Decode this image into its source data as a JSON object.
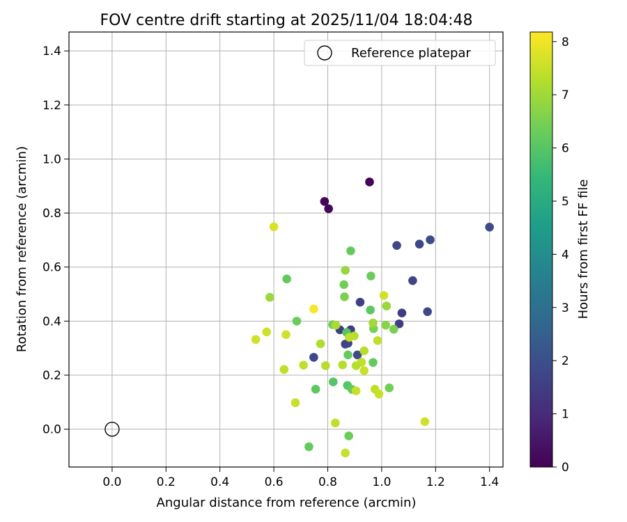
{
  "chart_data": {
    "type": "scatter",
    "title": "FOV centre drift starting at 2025/11/04 18:04:48",
    "xlabel": "Angular distance from reference (arcmin)",
    "ylabel": "Rotation from reference (arcmin)",
    "xlim": [
      -0.16,
      1.45
    ],
    "ylim": [
      -0.14,
      1.47
    ],
    "xticks": [
      0.0,
      0.2,
      0.4,
      0.6,
      0.8,
      1.0,
      1.2,
      1.4
    ],
    "yticks": [
      0.0,
      0.2,
      0.4,
      0.6,
      0.8,
      1.0,
      1.2,
      1.4
    ],
    "grid": true,
    "legend": {
      "position": "top-right",
      "entries": [
        "Reference platepar"
      ]
    },
    "reference_point": {
      "x": 0.0,
      "y": 0.0
    },
    "colorbar": {
      "label": "Hours from first FF file",
      "min": 0,
      "max": 8.18,
      "ticks": [
        0,
        1,
        2,
        3,
        4,
        5,
        6,
        7,
        8
      ],
      "colormap": [
        "#440154",
        "#482878",
        "#3e4989",
        "#31688e",
        "#26828e",
        "#1f9e89",
        "#35b779",
        "#6ece58",
        "#b5de2b",
        "#fde725"
      ]
    },
    "points": [
      {
        "x": 0.955,
        "y": 0.915,
        "c": 0.05
      },
      {
        "x": 0.788,
        "y": 0.843,
        "c": 0.1
      },
      {
        "x": 0.803,
        "y": 0.816,
        "c": 0.15
      },
      {
        "x": 1.4,
        "y": 0.748,
        "c": 1.9
      },
      {
        "x": 1.18,
        "y": 0.701,
        "c": 1.9
      },
      {
        "x": 1.14,
        "y": 0.685,
        "c": 1.8
      },
      {
        "x": 1.056,
        "y": 0.68,
        "c": 1.8
      },
      {
        "x": 1.115,
        "y": 0.55,
        "c": 1.7
      },
      {
        "x": 0.92,
        "y": 0.47,
        "c": 1.6
      },
      {
        "x": 1.17,
        "y": 0.435,
        "c": 1.8
      },
      {
        "x": 1.075,
        "y": 0.43,
        "c": 1.5
      },
      {
        "x": 1.065,
        "y": 0.39,
        "c": 1.5
      },
      {
        "x": 0.845,
        "y": 0.368,
        "c": 1.5
      },
      {
        "x": 0.885,
        "y": 0.368,
        "c": 1.5
      },
      {
        "x": 0.865,
        "y": 0.315,
        "c": 1.6
      },
      {
        "x": 0.875,
        "y": 0.318,
        "c": 1.7
      },
      {
        "x": 0.91,
        "y": 0.275,
        "c": 1.9
      },
      {
        "x": 0.748,
        "y": 0.266,
        "c": 1.8
      },
      {
        "x": 0.875,
        "y": 0.275,
        "c": 6.2
      },
      {
        "x": 0.885,
        "y": 0.66,
        "c": 6.2
      },
      {
        "x": 0.648,
        "y": 0.556,
        "c": 6.2
      },
      {
        "x": 0.96,
        "y": 0.567,
        "c": 6.3
      },
      {
        "x": 0.86,
        "y": 0.535,
        "c": 6.4
      },
      {
        "x": 0.862,
        "y": 0.49,
        "c": 6.5
      },
      {
        "x": 0.958,
        "y": 0.441,
        "c": 6.1
      },
      {
        "x": 0.685,
        "y": 0.4,
        "c": 6.3
      },
      {
        "x": 0.818,
        "y": 0.387,
        "c": 6.4
      },
      {
        "x": 0.97,
        "y": 0.372,
        "c": 6.5
      },
      {
        "x": 1.045,
        "y": 0.37,
        "c": 6.5
      },
      {
        "x": 1.015,
        "y": 0.385,
        "c": 6.7
      },
      {
        "x": 0.968,
        "y": 0.247,
        "c": 6.2
      },
      {
        "x": 0.82,
        "y": 0.175,
        "c": 6.0
      },
      {
        "x": 0.873,
        "y": 0.162,
        "c": 6.0
      },
      {
        "x": 0.755,
        "y": 0.148,
        "c": 6.1
      },
      {
        "x": 0.89,
        "y": 0.147,
        "c": 6.2
      },
      {
        "x": 1.028,
        "y": 0.153,
        "c": 6.4
      },
      {
        "x": 0.73,
        "y": -0.065,
        "c": 6.2
      },
      {
        "x": 0.878,
        "y": -0.025,
        "c": 6.3
      },
      {
        "x": 0.865,
        "y": 0.588,
        "c": 6.9
      },
      {
        "x": 0.585,
        "y": 0.488,
        "c": 6.9
      },
      {
        "x": 1.018,
        "y": 0.456,
        "c": 6.9
      },
      {
        "x": 0.968,
        "y": 0.393,
        "c": 7.0
      },
      {
        "x": 0.83,
        "y": 0.385,
        "c": 7.1
      },
      {
        "x": 0.87,
        "y": 0.358,
        "c": 6.0
      },
      {
        "x": 0.898,
        "y": 0.345,
        "c": 7.3
      },
      {
        "x": 0.88,
        "y": 0.34,
        "c": 7.4
      },
      {
        "x": 0.985,
        "y": 0.328,
        "c": 7.4
      },
      {
        "x": 0.773,
        "y": 0.316,
        "c": 7.2
      },
      {
        "x": 0.935,
        "y": 0.29,
        "c": 7.3
      },
      {
        "x": 0.925,
        "y": 0.248,
        "c": 7.4
      },
      {
        "x": 0.855,
        "y": 0.238,
        "c": 7.3
      },
      {
        "x": 0.905,
        "y": 0.235,
        "c": 7.3
      },
      {
        "x": 0.792,
        "y": 0.235,
        "c": 7.3
      },
      {
        "x": 0.71,
        "y": 0.237,
        "c": 7.4
      },
      {
        "x": 0.638,
        "y": 0.221,
        "c": 7.4
      },
      {
        "x": 0.935,
        "y": 0.217,
        "c": 7.5
      },
      {
        "x": 0.975,
        "y": 0.148,
        "c": 7.4
      },
      {
        "x": 0.905,
        "y": 0.142,
        "c": 7.5
      },
      {
        "x": 0.99,
        "y": 0.13,
        "c": 7.5
      },
      {
        "x": 0.68,
        "y": 0.098,
        "c": 7.5
      },
      {
        "x": 0.828,
        "y": 0.023,
        "c": 7.4
      },
      {
        "x": 1.16,
        "y": 0.028,
        "c": 7.6
      },
      {
        "x": 0.865,
        "y": -0.088,
        "c": 7.5
      },
      {
        "x": 1.008,
        "y": 0.495,
        "c": 7.6
      },
      {
        "x": 0.645,
        "y": 0.35,
        "c": 7.6
      },
      {
        "x": 0.573,
        "y": 0.36,
        "c": 7.6
      },
      {
        "x": 0.533,
        "y": 0.332,
        "c": 7.6
      },
      {
        "x": 0.6,
        "y": 0.749,
        "c": 7.7
      },
      {
        "x": 0.748,
        "y": 0.445,
        "c": 8.1
      }
    ]
  }
}
